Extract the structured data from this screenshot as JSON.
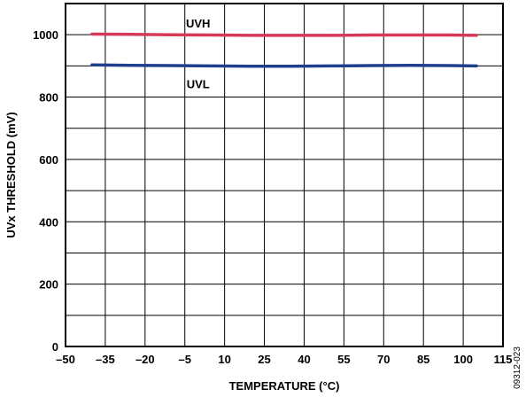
{
  "chart_data": {
    "type": "line",
    "xlabel": "TEMPERATURE (°C)",
    "ylabel": "UVx THRESHOLD (mV)",
    "xlim": [
      -50,
      115
    ],
    "ylim": [
      0,
      1100
    ],
    "xticks": [
      -50,
      -35,
      -20,
      -5,
      10,
      25,
      40,
      55,
      70,
      85,
      100,
      115
    ],
    "xtick_labels": [
      "–50",
      "–35",
      "–20",
      "–5",
      "10",
      "25",
      "40",
      "55",
      "70",
      "85",
      "100",
      "115"
    ],
    "yticks": [
      0,
      200,
      400,
      600,
      800,
      1000
    ],
    "ytick_labels": [
      "0",
      "200",
      "400",
      "600",
      "800",
      "1000"
    ],
    "grid": true,
    "series": [
      {
        "name": "UVH",
        "color": "#d6385a",
        "x": [
          -40,
          -25,
          -10,
          5,
          20,
          35,
          50,
          65,
          80,
          95,
          105
        ],
        "y": [
          1002,
          1001,
          1000,
          999,
          998,
          998,
          998,
          999,
          999,
          999,
          998
        ]
      },
      {
        "name": "UVL",
        "color": "#1f3f8c",
        "x": [
          -40,
          -25,
          -10,
          5,
          20,
          35,
          50,
          65,
          80,
          95,
          105
        ],
        "y": [
          903,
          902,
          901,
          900,
          899,
          899,
          900,
          901,
          902,
          901,
          900
        ]
      }
    ]
  },
  "figure_id": "09312-023"
}
